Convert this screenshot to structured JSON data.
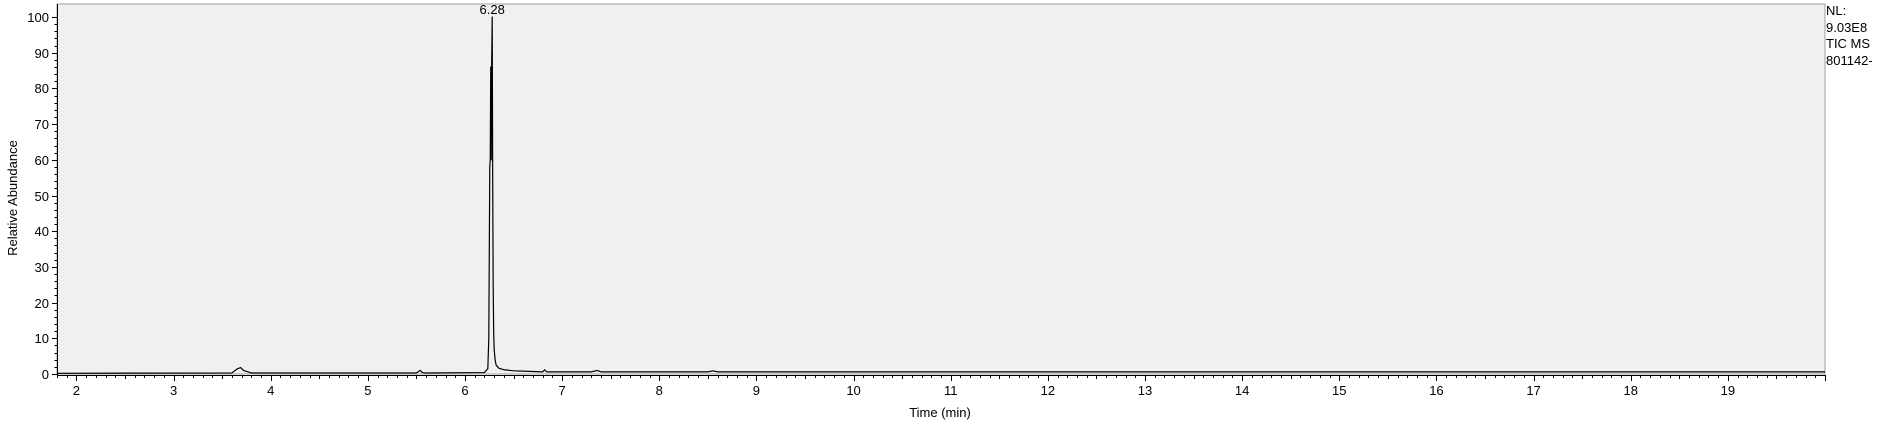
{
  "chart_data": {
    "type": "line",
    "title": "",
    "xlabel": "Time (min)",
    "ylabel": "Relative Abundance",
    "xlim": [
      1.8,
      20.0
    ],
    "ylim": [
      0,
      100
    ],
    "x_ticks": [
      2,
      3,
      4,
      5,
      6,
      7,
      8,
      9,
      10,
      11,
      12,
      13,
      14,
      15,
      16,
      17,
      18,
      19
    ],
    "y_ticks": [
      0,
      10,
      20,
      30,
      40,
      50,
      60,
      70,
      80,
      90,
      100
    ],
    "grid": false,
    "background": "#f0f0f0",
    "line_color": "#000000",
    "series": [
      {
        "x": [
          1.8,
          3.6,
          3.66,
          3.69,
          3.72,
          3.8,
          5.5,
          5.54,
          5.56,
          5.6,
          6.2,
          6.235,
          6.245,
          6.255,
          6.26,
          6.265,
          6.27,
          6.275,
          6.28,
          6.285,
          6.29,
          6.295,
          6.3,
          6.31,
          6.32,
          6.35,
          6.4,
          6.5,
          6.7,
          6.8,
          6.82,
          6.84,
          7.0,
          7.3,
          7.36,
          7.4,
          7.6,
          8.0,
          8.5,
          8.55,
          8.6,
          9.0,
          10.0,
          12.0,
          15.0,
          18.0,
          20.0
        ],
        "y": [
          0.2,
          0.3,
          1.5,
          1.8,
          1.0,
          0.3,
          0.3,
          1.0,
          0.4,
          0.3,
          0.4,
          1.5,
          10,
          58,
          60,
          86,
          60,
          88,
          100,
          55,
          25,
          12,
          7,
          4,
          2.5,
          1.6,
          1.2,
          0.9,
          0.7,
          0.6,
          1.2,
          0.6,
          0.6,
          0.6,
          1.0,
          0.6,
          0.6,
          0.6,
          0.6,
          0.9,
          0.6,
          0.6,
          0.6,
          0.6,
          0.6,
          0.6,
          0.6
        ]
      }
    ],
    "annotations": [
      {
        "x": 6.28,
        "y": 100,
        "text": "6.28"
      }
    ]
  },
  "info_panel": {
    "line1": "NL:",
    "line2": "9.03E8",
    "line3": "TIC  MS",
    "line4": "801142-"
  }
}
